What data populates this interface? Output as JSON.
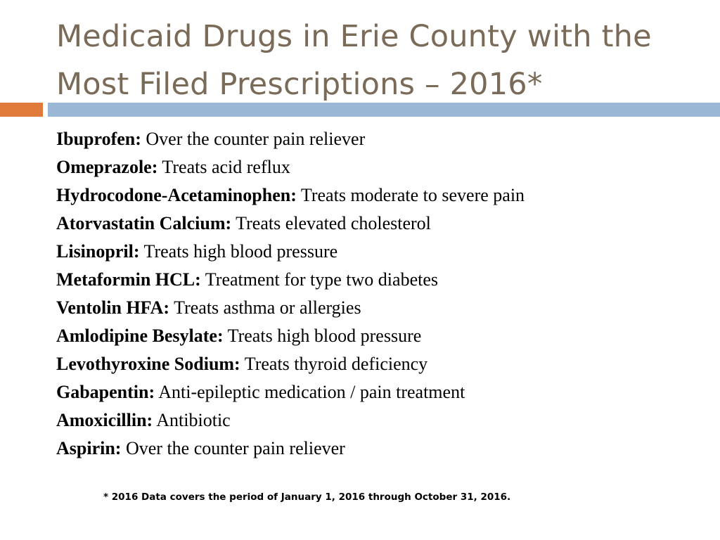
{
  "slide": {
    "title_line1": "Medicaid Drugs in Erie County with the",
    "title_line2": "Most Filed Prescriptions – 2016*",
    "colors": {
      "title": "#7a6a58",
      "accent_orange": "#e07b3c",
      "accent_blue": "#9ab7d6"
    }
  },
  "drugs": [
    {
      "name": "Ibuprofen:",
      "description": " Over the counter pain reliever"
    },
    {
      "name": "Omeprazole:",
      "description": " Treats acid reflux"
    },
    {
      "name": "Hydrocodone-Acetaminophen:",
      "description": " Treats moderate to severe pain"
    },
    {
      "name": "Atorvastatin Calcium:",
      "description": " Treats elevated cholesterol"
    },
    {
      "name": "Lisinopril:",
      "description": " Treats high blood pressure"
    },
    {
      "name": "Metaformin HCL:",
      "description": " Treatment for type two diabetes"
    },
    {
      "name": "Ventolin HFA:",
      "description": " Treats asthma or allergies"
    },
    {
      "name": "Amlodipine Besylate:",
      "description": " Treats high blood pressure"
    },
    {
      "name": "Levothyroxine Sodium:",
      "description": " Treats thyroid deficiency"
    },
    {
      "name": "Gabapentin:",
      "description": " Anti-epileptic medication / pain treatment"
    },
    {
      "name": "Amoxicillin:",
      "description": " Antibiotic"
    },
    {
      "name": "Aspirin:",
      "description": " Over the counter pain reliever"
    }
  ],
  "footnote": "* 2016 Data covers the period of January 1, 2016 through October 31, 2016."
}
